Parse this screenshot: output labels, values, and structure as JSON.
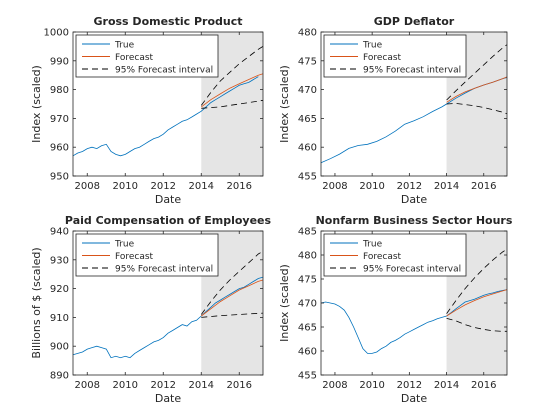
{
  "legend_labels": {
    "true": "True",
    "forecast": "Forecast",
    "interval": "95% Forecast interval"
  },
  "colors": {
    "true": "#0072BD",
    "forecast": "#D95319",
    "interval": "#000000",
    "shade": "#E5E5E5",
    "axis": "#262626"
  },
  "chart_data": [
    {
      "type": "line",
      "title": "Gross Domestic Product",
      "xlabel": "Date",
      "ylabel": "Index (scaled)",
      "xlim": [
        2007.25,
        2017.25
      ],
      "ylim": [
        950,
        1000
      ],
      "xticks": [
        2008,
        2010,
        2012,
        2014,
        2016
      ],
      "yticks": [
        950,
        960,
        970,
        980,
        990,
        1000
      ],
      "forecast_region": [
        2014,
        2017.25
      ],
      "legend": "top-left",
      "series": [
        {
          "name": "True",
          "role": "true",
          "x": [
            2007.25,
            2007.5,
            2007.75,
            2008,
            2008.25,
            2008.5,
            2008.75,
            2009,
            2009.25,
            2009.5,
            2009.75,
            2010,
            2010.25,
            2010.5,
            2010.75,
            2011,
            2011.25,
            2011.5,
            2011.75,
            2012,
            2012.25,
            2012.5,
            2012.75,
            2013,
            2013.25,
            2013.5,
            2013.75,
            2014,
            2014.25,
            2014.5,
            2014.75,
            2015,
            2015.25,
            2015.5,
            2015.75,
            2016,
            2016.25,
            2016.5,
            2016.75,
            2017
          ],
          "y": [
            957,
            958,
            958.5,
            959.5,
            960,
            959.5,
            960.5,
            961,
            958.5,
            957.5,
            957,
            957.5,
            958.5,
            959.5,
            960,
            961,
            962,
            963,
            963.5,
            964.5,
            966,
            967,
            968,
            969,
            969.5,
            970.5,
            971.5,
            972.5,
            974,
            975.5,
            976.5,
            977.5,
            978.5,
            979.5,
            980.5,
            981.5,
            982,
            982.5,
            983.5,
            984.5
          ]
        },
        {
          "name": "Forecast",
          "role": "forecast",
          "x": [
            2014,
            2014.5,
            2015,
            2015.5,
            2016,
            2016.5,
            2017,
            2017.25
          ],
          "y": [
            974,
            976.5,
            978.5,
            980.5,
            982,
            983.5,
            985,
            985.5
          ]
        },
        {
          "name": "95% Forecast interval",
          "role": "upper",
          "x": [
            2014,
            2014.5,
            2015,
            2015.5,
            2016,
            2016.5,
            2017,
            2017.25
          ],
          "y": [
            974.5,
            979,
            983,
            986,
            989,
            991.5,
            994,
            995
          ]
        },
        {
          "name": "95% Forecast interval",
          "role": "lower",
          "x": [
            2014,
            2014.5,
            2015,
            2015.5,
            2016,
            2016.5,
            2017,
            2017.25
          ],
          "y": [
            973.5,
            973.8,
            974,
            974.5,
            975,
            975.5,
            976,
            976.3
          ]
        }
      ]
    },
    {
      "type": "line",
      "title": "GDP Deflator",
      "xlabel": "Date",
      "ylabel": "Index (scaled)",
      "xlim": [
        2007.25,
        2017.25
      ],
      "ylim": [
        455,
        480
      ],
      "xticks": [
        2008,
        2010,
        2012,
        2014,
        2016
      ],
      "yticks": [
        455,
        460,
        465,
        470,
        475,
        480
      ],
      "forecast_region": [
        2014,
        2017.25
      ],
      "legend": "top-left",
      "series": [
        {
          "name": "True",
          "role": "true",
          "x": [
            2007.25,
            2007.75,
            2008.25,
            2008.75,
            2009.25,
            2009.75,
            2010.25,
            2010.75,
            2011.25,
            2011.75,
            2012.25,
            2012.75,
            2013.25,
            2013.75,
            2014,
            2014.5,
            2015,
            2015.5,
            2016,
            2016.5,
            2017,
            2017.25
          ],
          "y": [
            457.3,
            458,
            458.8,
            459.8,
            460.3,
            460.5,
            461,
            461.8,
            462.8,
            464,
            464.6,
            465.3,
            466.2,
            467,
            467.5,
            468.5,
            469.4,
            470.2,
            470.8,
            471.3,
            471.9,
            472.1
          ]
        },
        {
          "name": "Forecast",
          "role": "forecast",
          "x": [
            2014,
            2014.5,
            2015,
            2015.5,
            2016,
            2016.5,
            2017,
            2017.25
          ],
          "y": [
            467.8,
            468.8,
            469.6,
            470.2,
            470.8,
            471.3,
            471.9,
            472.2
          ]
        },
        {
          "name": "95% Forecast interval",
          "role": "upper",
          "x": [
            2014,
            2014.5,
            2015,
            2015.5,
            2016,
            2016.5,
            2017,
            2017.25
          ],
          "y": [
            468.2,
            469.8,
            471.3,
            472.8,
            474.3,
            475.8,
            477.2,
            477.8
          ]
        },
        {
          "name": "95% Forecast interval",
          "role": "lower",
          "x": [
            2014,
            2014.5,
            2015,
            2015.5,
            2016,
            2016.5,
            2017,
            2017.25
          ],
          "y": [
            467.5,
            467.6,
            467.4,
            467.2,
            466.9,
            466.5,
            466.1,
            465.8
          ]
        }
      ]
    },
    {
      "type": "line",
      "title": "Paid Compensation of Employees",
      "xlabel": "Date",
      "ylabel": "Billions of $ (scaled)",
      "xlim": [
        2007.25,
        2017.25
      ],
      "ylim": [
        890,
        940
      ],
      "xticks": [
        2008,
        2010,
        2012,
        2014,
        2016
      ],
      "yticks": [
        890,
        900,
        910,
        920,
        930,
        940
      ],
      "forecast_region": [
        2014,
        2017.25
      ],
      "legend": "top-left",
      "series": [
        {
          "name": "True",
          "role": "true",
          "x": [
            2007.25,
            2007.5,
            2007.75,
            2008,
            2008.25,
            2008.5,
            2008.75,
            2009,
            2009.25,
            2009.5,
            2009.75,
            2010,
            2010.25,
            2010.5,
            2010.75,
            2011,
            2011.25,
            2011.5,
            2011.75,
            2012,
            2012.25,
            2012.5,
            2012.75,
            2013,
            2013.25,
            2013.5,
            2013.75,
            2014,
            2014.25,
            2014.5,
            2014.75,
            2015,
            2015.25,
            2015.5,
            2015.75,
            2016,
            2016.25,
            2016.5,
            2016.75,
            2017,
            2017.25
          ],
          "y": [
            897,
            897.5,
            898,
            899,
            899.5,
            900,
            899.5,
            899,
            896,
            896.5,
            896,
            896.5,
            896,
            897.5,
            898.5,
            899.5,
            900.5,
            901.5,
            902,
            903,
            904.5,
            905.5,
            906.5,
            907.5,
            907,
            908.5,
            909,
            910.5,
            912,
            913.5,
            915,
            916,
            917,
            918,
            919,
            920,
            920.5,
            921.5,
            922.5,
            923.5,
            924
          ]
        },
        {
          "name": "Forecast",
          "role": "forecast",
          "x": [
            2014,
            2014.5,
            2015,
            2015.5,
            2016,
            2016.5,
            2017,
            2017.25
          ],
          "y": [
            910.5,
            913,
            915.5,
            917.5,
            919.5,
            921,
            922.5,
            923
          ]
        },
        {
          "name": "95% Forecast interval",
          "role": "upper",
          "x": [
            2014,
            2014.5,
            2015,
            2015.5,
            2016,
            2016.5,
            2017,
            2017.25
          ],
          "y": [
            911,
            915.5,
            919.5,
            923,
            926,
            929,
            932,
            933
          ]
        },
        {
          "name": "95% Forecast interval",
          "role": "lower",
          "x": [
            2014,
            2014.5,
            2015,
            2015.5,
            2016,
            2016.5,
            2017,
            2017.25
          ],
          "y": [
            910,
            910.3,
            910.6,
            910.8,
            911,
            911.2,
            911.4,
            911.5
          ]
        }
      ]
    },
    {
      "type": "line",
      "title": "Nonfarm Business Sector Hours",
      "xlabel": "Date",
      "ylabel": "Index (scaled)",
      "xlim": [
        2007.25,
        2017.25
      ],
      "ylim": [
        455,
        485
      ],
      "xticks": [
        2008,
        2010,
        2012,
        2014,
        2016
      ],
      "yticks": [
        455,
        460,
        465,
        470,
        475,
        480,
        485
      ],
      "forecast_region": [
        2014,
        2017.25
      ],
      "legend": "top-left",
      "series": [
        {
          "name": "True",
          "role": "true",
          "x": [
            2007.25,
            2007.5,
            2007.75,
            2008,
            2008.25,
            2008.5,
            2008.75,
            2009,
            2009.25,
            2009.5,
            2009.75,
            2010,
            2010.25,
            2010.5,
            2010.75,
            2011,
            2011.25,
            2011.5,
            2011.75,
            2012,
            2012.25,
            2012.5,
            2012.75,
            2013,
            2013.25,
            2013.5,
            2013.75,
            2014,
            2014.25,
            2014.5,
            2014.75,
            2015,
            2015.25,
            2015.5,
            2015.75,
            2016,
            2016.25,
            2016.5,
            2016.75,
            2017,
            2017.25
          ],
          "y": [
            470,
            470.2,
            470,
            469.8,
            469.3,
            468.5,
            467,
            465,
            462.8,
            460.5,
            459.5,
            459.5,
            459.8,
            460.5,
            461,
            461.8,
            462.2,
            462.8,
            463.5,
            464,
            464.5,
            465,
            465.5,
            466,
            466.3,
            466.7,
            467,
            467.3,
            468,
            468.8,
            469.5,
            470.2,
            470.5,
            470.8,
            471.2,
            471.6,
            471.9,
            472.1,
            472.4,
            472.6,
            472.8
          ]
        },
        {
          "name": "Forecast",
          "role": "forecast",
          "x": [
            2014,
            2014.5,
            2015,
            2015.5,
            2016,
            2016.5,
            2017,
            2017.25
          ],
          "y": [
            467.3,
            468.5,
            469.6,
            470.5,
            471.3,
            471.9,
            472.5,
            472.8
          ]
        },
        {
          "name": "95% Forecast interval",
          "role": "upper",
          "x": [
            2014,
            2014.5,
            2015,
            2015.5,
            2016,
            2016.5,
            2017,
            2017.25
          ],
          "y": [
            467.8,
            470.5,
            473,
            475.2,
            477.2,
            479,
            480.6,
            481.2
          ]
        },
        {
          "name": "95% Forecast interval",
          "role": "lower",
          "x": [
            2014,
            2014.5,
            2015,
            2015.5,
            2016,
            2016.5,
            2017,
            2017.25
          ],
          "y": [
            466.8,
            466.3,
            465.5,
            464.9,
            464.5,
            464.2,
            464.1,
            464.1
          ]
        }
      ]
    }
  ]
}
